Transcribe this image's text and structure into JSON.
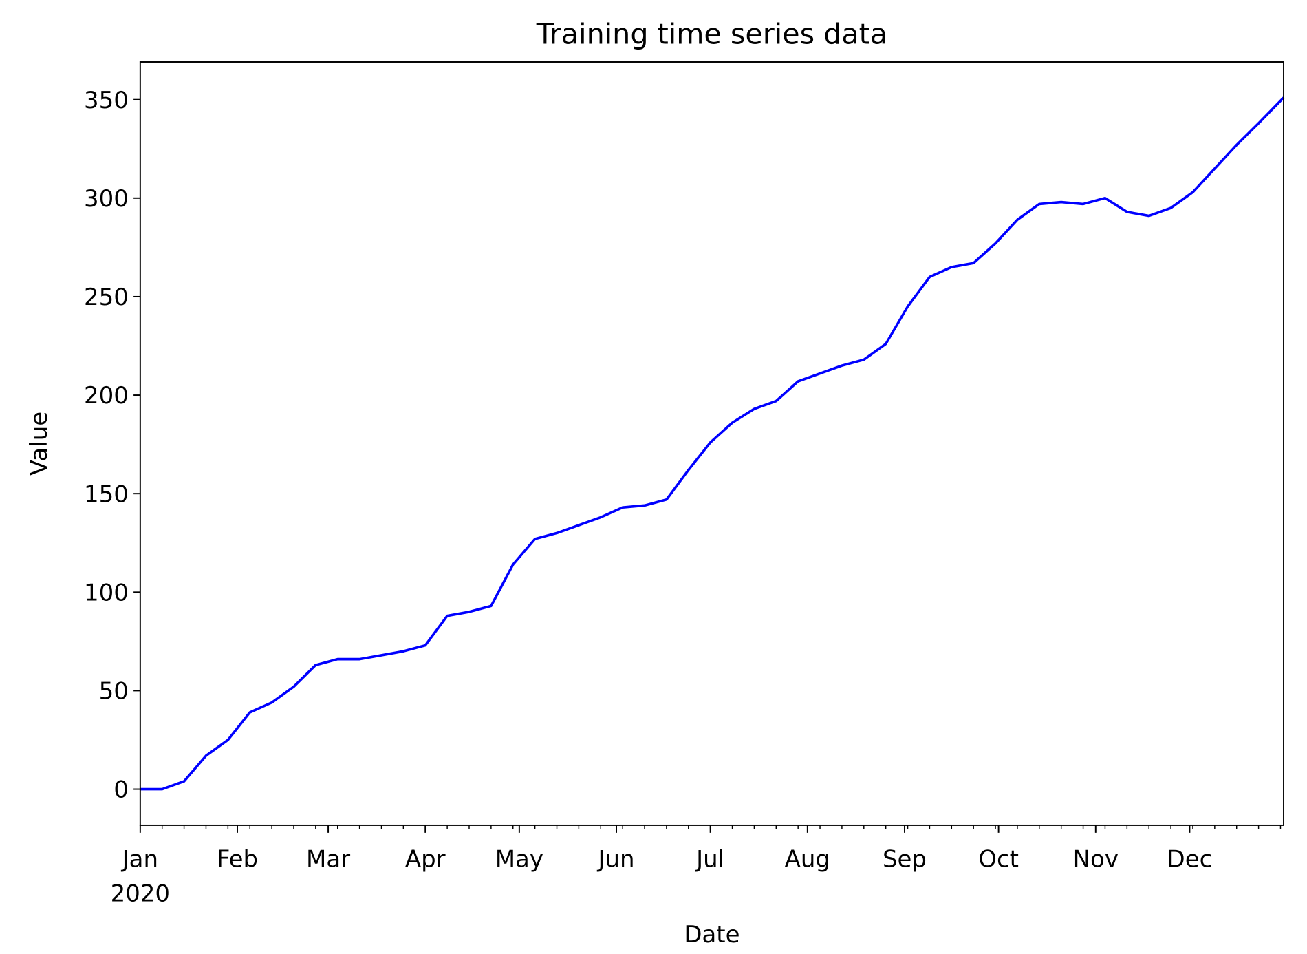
{
  "chart_data": {
    "type": "line",
    "title": "Training time series data",
    "x_label": "Date",
    "y_label": "Value",
    "x_year_label": "2020",
    "x": [
      "2020-01-01",
      "2020-01-08",
      "2020-01-15",
      "2020-01-22",
      "2020-01-29",
      "2020-02-05",
      "2020-02-12",
      "2020-02-19",
      "2020-02-26",
      "2020-03-04",
      "2020-03-11",
      "2020-03-18",
      "2020-03-25",
      "2020-04-01",
      "2020-04-08",
      "2020-04-15",
      "2020-04-22",
      "2020-04-29",
      "2020-05-06",
      "2020-05-13",
      "2020-05-20",
      "2020-05-27",
      "2020-06-03",
      "2020-06-10",
      "2020-06-17",
      "2020-06-24",
      "2020-07-01",
      "2020-07-08",
      "2020-07-15",
      "2020-07-22",
      "2020-07-29",
      "2020-08-05",
      "2020-08-12",
      "2020-08-19",
      "2020-08-26",
      "2020-09-02",
      "2020-09-09",
      "2020-09-16",
      "2020-09-23",
      "2020-09-30",
      "2020-10-07",
      "2020-10-14",
      "2020-10-21",
      "2020-10-28",
      "2020-11-04",
      "2020-11-11",
      "2020-11-18",
      "2020-11-25",
      "2020-12-02",
      "2020-12-09",
      "2020-12-16",
      "2020-12-23",
      "2020-12-31"
    ],
    "series": [
      {
        "name": "Value",
        "color": "#0000ff",
        "values": [
          0,
          0,
          4,
          17,
          25,
          39,
          44,
          52,
          63,
          66,
          66,
          68,
          70,
          73,
          88,
          90,
          93,
          114,
          127,
          130,
          134,
          138,
          143,
          144,
          147,
          162,
          176,
          186,
          193,
          197,
          207,
          211,
          215,
          218,
          226,
          245,
          260,
          265,
          267,
          277,
          289,
          297,
          298,
          297,
          300,
          293,
          291,
          295,
          303,
          315,
          327,
          338,
          351
        ]
      }
    ],
    "xlim": [
      "2020-01-01",
      "2020-12-31"
    ],
    "xticks": [
      {
        "value": "2020-01-01",
        "label": "Jan"
      },
      {
        "value": "2020-02-01",
        "label": "Feb"
      },
      {
        "value": "2020-03-01",
        "label": "Mar"
      },
      {
        "value": "2020-04-01",
        "label": "Apr"
      },
      {
        "value": "2020-05-01",
        "label": "May"
      },
      {
        "value": "2020-06-01",
        "label": "Jun"
      },
      {
        "value": "2020-07-01",
        "label": "Jul"
      },
      {
        "value": "2020-08-01",
        "label": "Aug"
      },
      {
        "value": "2020-09-01",
        "label": "Sep"
      },
      {
        "value": "2020-10-01",
        "label": "Oct"
      },
      {
        "value": "2020-11-01",
        "label": "Nov"
      },
      {
        "value": "2020-12-01",
        "label": "Dec"
      }
    ],
    "ylim": [
      -18.3,
      369.1
    ],
    "yticks": [
      0,
      50,
      100,
      150,
      200,
      250,
      300,
      350
    ],
    "grid": false
  }
}
